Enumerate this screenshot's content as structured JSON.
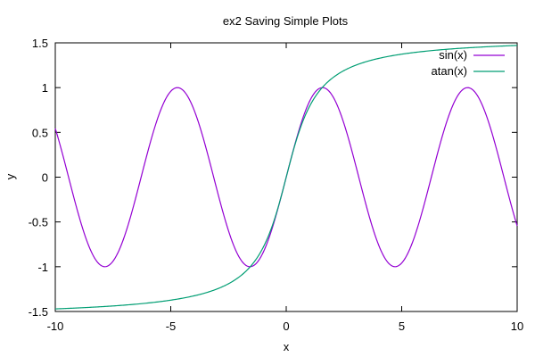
{
  "chart_data": {
    "type": "line",
    "title": "ex2 Saving Simple Plots",
    "xlabel": "x",
    "ylabel": "y",
    "xlim": [
      -10,
      10
    ],
    "ylim": [
      -1.5,
      1.5
    ],
    "xticks": [
      -10,
      -5,
      0,
      5,
      10
    ],
    "yticks": [
      -1.5,
      -1,
      -0.5,
      0,
      0.5,
      1,
      1.5
    ],
    "xtick_labels": [
      "-10",
      "-5",
      "0",
      "5",
      "10"
    ],
    "ytick_labels": [
      "-1.5",
      "-1",
      "-0.5",
      "0",
      "0.5",
      "1",
      "1.5"
    ],
    "grid": false,
    "legend_position": "top-right",
    "series": [
      {
        "name": "sin(x)",
        "function": "sin",
        "color": "#9400d3"
      },
      {
        "name": "atan(x)",
        "function": "atan",
        "color": "#009e73"
      }
    ]
  }
}
